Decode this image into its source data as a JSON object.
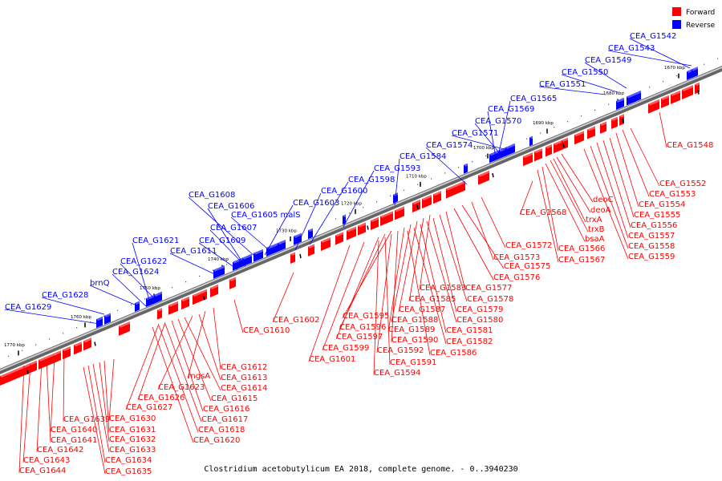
{
  "caption": "Clostridium acetobutylicum EA 2018, complete genome. - 0..3940230",
  "legend": [
    {
      "label": "Forward",
      "color": "#ff0000"
    },
    {
      "label": "Reverse",
      "color": "#0000ff"
    }
  ],
  "colors": {
    "forward": "#ff0000",
    "reverse": "#0000ff",
    "backbone": "#555555"
  },
  "ticks": [
    "1670 kbp",
    "1680 kbp",
    "1690 kbp",
    "1700 kbp",
    "1710 kbp",
    "1720 kbp",
    "1730 kbp",
    "1740 kbp",
    "1750 kbp",
    "1760 kbp",
    "1770 kbp"
  ],
  "reverse_labels": [
    "CEA_G1542",
    "CEA_G1543",
    "CEA_G1549",
    "CEA_G1550",
    "CEA_G1551",
    "CEA_G1565",
    "CEA_G1569",
    "CEA_G1570",
    "CEA_G1571",
    "CEA_G1574",
    "CEA_G1584",
    "CEA_G1593",
    "CEA_G1598",
    "CEA_G1600",
    "CEA_G1603",
    "CEA_G1608",
    "CEA_G1606",
    "CEA_G1605 malS",
    "CEA_G1607",
    "CEA_G1609",
    "CEA_G1611",
    "CEA_G1621",
    "CEA_G1622",
    "CEA_G1624",
    "brnQ",
    "CEA_G1628",
    "CEA_G1629"
  ],
  "forward_labels": [
    "CEA_G1548",
    "CEA_G1552",
    "CEA_G1553",
    "CEA_G1554",
    "deoC",
    "deoA",
    "CEA_G1555",
    "trxA",
    "CEA_G1556",
    "trxB",
    "CEA_G1557",
    "bsaA",
    "CEA_G1558",
    "CEA_G1568",
    "CEA_G1566",
    "CEA_G1559",
    "CEA_G1567",
    "CEA_G1572",
    "CEA_G1573",
    "CEA_G1575",
    "CEA_G1576",
    "CEA_G1583",
    "CEA_G1577",
    "CEA_G1585",
    "CEA_G1578",
    "CEA_G1587",
    "CEA_G1579",
    "CEA_G1595",
    "CEA_G1588",
    "CEA_G1580",
    "CEA_G1602",
    "CEA_G1596",
    "CEA_G1589",
    "CEA_G1581",
    "CEA_G1610",
    "CEA_G1597",
    "CEA_G1590",
    "CEA_G1582",
    "CEA_G1599",
    "CEA_G1592",
    "CEA_G1586",
    "CEA_G1601",
    "CEA_G1591",
    "CEA_G1594",
    "CEA_G1612",
    "mgsA",
    "CEA_G1613",
    "CEA_G1623",
    "CEA_G1614",
    "CEA_G1626",
    "CEA_G1615",
    "CEA_G1627",
    "CEA_G1616",
    "CEA_G1639",
    "CEA_G1630",
    "CEA_G1617",
    "CEA_G1640",
    "CEA_G1631",
    "CEA_G1618",
    "CEA_G1641",
    "CEA_G1632",
    "CEA_G1620",
    "CEA_G1642",
    "CEA_G1633",
    "CEA_G1643",
    "CEA_G1634",
    "CEA_G1644",
    "CEA_G1635"
  ]
}
